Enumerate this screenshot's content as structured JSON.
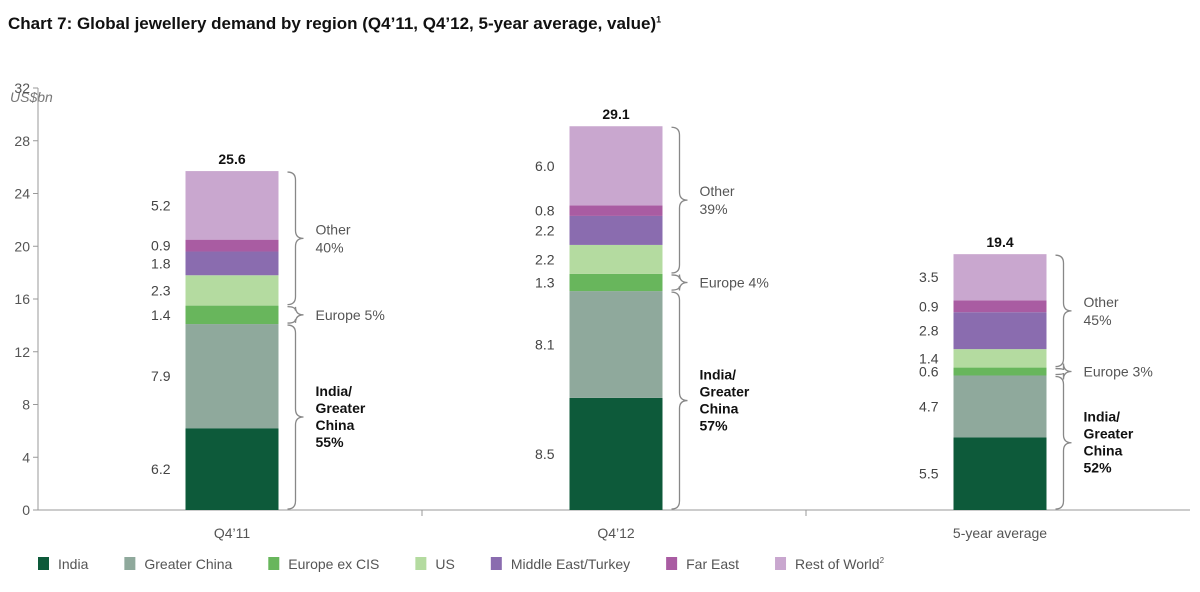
{
  "chart_data": {
    "type": "bar",
    "stacked": true,
    "title": "Chart 7: Global jewellery demand by region (Q4’11, Q4’12, 5-year average, value)",
    "title_footnote": "1",
    "ylabel": "US$bn",
    "xlabel": "",
    "ylim": [
      0,
      32
    ],
    "yticks": [
      0,
      4,
      8,
      12,
      16,
      20,
      24,
      28,
      32
    ],
    "categories": [
      "Q4’11",
      "Q4’12",
      "5-year average"
    ],
    "totals": [
      "25.6",
      "29.1",
      "19.4"
    ],
    "series": [
      {
        "name": "India",
        "color": "#0d5a3a",
        "values": [
          6.2,
          8.5,
          5.5
        ]
      },
      {
        "name": "Greater China",
        "color": "#8fa99c",
        "values": [
          7.9,
          8.1,
          4.7
        ]
      },
      {
        "name": "Europe ex CIS",
        "color": "#68b65c",
        "values": [
          1.4,
          1.3,
          0.6
        ]
      },
      {
        "name": "US",
        "color": "#b4dba0",
        "values": [
          2.3,
          2.2,
          1.4
        ]
      },
      {
        "name": "Middle East/Turkey",
        "color": "#8a6caf",
        "values": [
          1.8,
          2.2,
          2.8
        ]
      },
      {
        "name": "Far East",
        "color": "#a95ca2",
        "values": [
          0.9,
          0.8,
          0.9
        ]
      },
      {
        "name": "Rest of World",
        "footnote": "2",
        "color": "#c9a7cf",
        "values": [
          5.2,
          6.0,
          3.5
        ]
      }
    ],
    "brace_groups": [
      {
        "from": 0,
        "to": 1,
        "bold": true,
        "labels": [
          [
            "India/",
            "Greater",
            "China",
            "55%"
          ],
          [
            "India/",
            "Greater",
            "China",
            "57%"
          ],
          [
            "India/",
            "Greater",
            "China",
            "52%"
          ]
        ]
      },
      {
        "from": 2,
        "to": 2,
        "bold": false,
        "labels": [
          [
            "Europe 5%"
          ],
          [
            "Europe 4%"
          ],
          [
            "Europe 3%"
          ]
        ]
      },
      {
        "from": 3,
        "to": 6,
        "bold": false,
        "labels": [
          [
            "Other",
            "40%"
          ],
          [
            "Other",
            "39%"
          ],
          [
            "Other",
            "45%"
          ]
        ]
      }
    ],
    "legend_position": "bottom",
    "grid": false
  }
}
